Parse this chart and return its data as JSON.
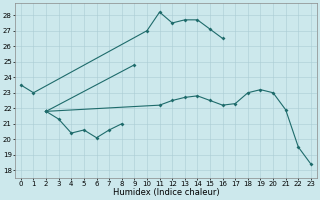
{
  "xlabel": "Humidex (Indice chaleur)",
  "background_color": "#cce8ec",
  "grid_color": "#aacdd4",
  "line_color": "#1e6b6b",
  "xlim": [
    -0.5,
    23.5
  ],
  "ylim": [
    17.5,
    28.8
  ],
  "yticks": [
    18,
    19,
    20,
    21,
    22,
    23,
    24,
    25,
    26,
    27,
    28
  ],
  "xticks": [
    0,
    1,
    2,
    3,
    4,
    5,
    6,
    7,
    8,
    9,
    10,
    11,
    12,
    13,
    14,
    15,
    16,
    17,
    18,
    19,
    20,
    21,
    22,
    23
  ],
  "line1_x": [
    0,
    1,
    10,
    11,
    12,
    13,
    14,
    15,
    16
  ],
  "line1_y": [
    23.5,
    23.0,
    27.0,
    28.2,
    27.5,
    27.7,
    27.7,
    27.1,
    26.5
  ],
  "line2_x": [
    2,
    3,
    4,
    5,
    6,
    7,
    8
  ],
  "line2_y": [
    21.8,
    21.3,
    20.4,
    20.6,
    20.1,
    20.6,
    21.0
  ],
  "line3_x": [
    2,
    9
  ],
  "line3_y": [
    21.8,
    24.8
  ],
  "line4_x": [
    2,
    11,
    12,
    13,
    14,
    15,
    16,
    17,
    18,
    19,
    20,
    21,
    22,
    23
  ],
  "line4_y": [
    21.8,
    22.2,
    22.5,
    22.7,
    22.8,
    22.5,
    22.2,
    22.3,
    23.0,
    23.2,
    23.0,
    21.9,
    19.5,
    18.4
  ],
  "xlabel_fontsize": 6,
  "tick_fontsize": 5
}
